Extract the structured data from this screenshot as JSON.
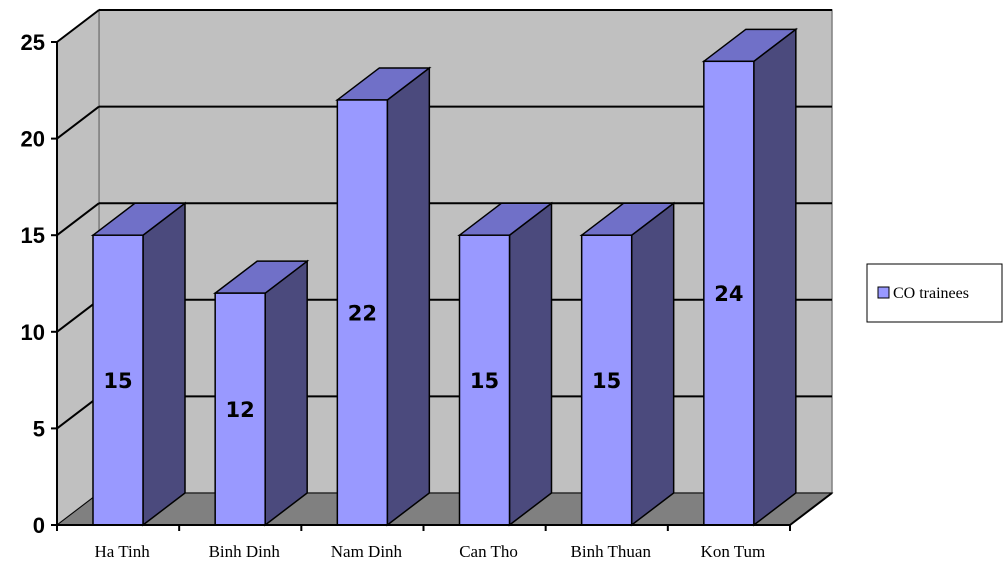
{
  "chart_data": {
    "type": "bar",
    "categories": [
      "Ha Tinh",
      "Binh Dinh",
      "Nam Dinh",
      "Can Tho",
      "Binh Thuan",
      "Kon Tum"
    ],
    "series": [
      {
        "name": "CO trainees",
        "values": [
          15,
          12,
          22,
          15,
          15,
          24
        ]
      }
    ],
    "ylim": [
      0,
      25
    ],
    "yticks": [
      "0",
      "5",
      "10",
      "15",
      "20",
      "25"
    ],
    "data_labels": [
      "15",
      "12",
      "22",
      "15",
      "15",
      "24"
    ],
    "grid": true,
    "legend_position": "right",
    "style": "3d-column",
    "colors": {
      "bar_front": "#9999ff",
      "bar_side": "#4b4a7d",
      "bar_top": "#7070c8",
      "back_wall": "#c0c0c0",
      "floor": "#808080"
    }
  }
}
